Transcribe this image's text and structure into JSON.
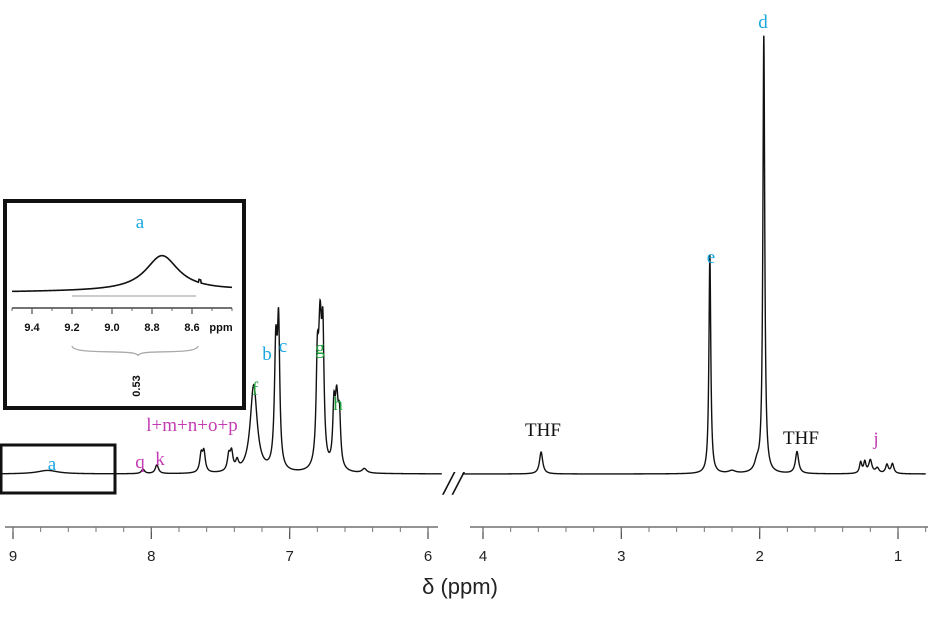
{
  "chart_data": {
    "type": "line",
    "title": "",
    "xlabel": "δ (ppm)",
    "ylabel": "",
    "x_direction": "descending",
    "axis_segments": [
      {
        "xlim": [
          9.1,
          5.9
        ],
        "ticks": [
          "9",
          "8",
          "7",
          "6"
        ]
      },
      {
        "xlim": [
          4.1,
          0.8
        ],
        "ticks": [
          "4",
          "3",
          "2",
          "1"
        ]
      }
    ],
    "axis_break": "//",
    "colors": {
      "cyan": "#1aa7e1",
      "green": "#1e9e3a",
      "magenta": "#c43bb4",
      "black": "#111111"
    },
    "peaks": [
      {
        "label": "a",
        "ppm": 8.75,
        "intensity": 0.008,
        "color": "cyan"
      },
      {
        "label": "q",
        "ppm": 8.06,
        "intensity": 0.01,
        "color": "magenta"
      },
      {
        "label": "k",
        "ppm": 7.96,
        "intensity": 0.02,
        "color": "magenta"
      },
      {
        "label": "l+m+n+o+p",
        "ppm": 7.6,
        "intensity": 0.07,
        "color": "magenta"
      },
      {
        "label": "f",
        "ppm": 7.26,
        "intensity": 0.2,
        "color": "green"
      },
      {
        "label": "b",
        "ppm": 7.1,
        "intensity": 0.27,
        "color": "cyan"
      },
      {
        "label": "c",
        "ppm": 7.08,
        "intensity": 0.3,
        "color": "cyan"
      },
      {
        "label": "g",
        "ppm": 6.78,
        "intensity": 0.3,
        "color": "green"
      },
      {
        "label": "h",
        "ppm": 6.66,
        "intensity": 0.15,
        "color": "green"
      },
      {
        "label": "THF",
        "ppm": 3.58,
        "intensity": 0.05,
        "color": "black"
      },
      {
        "label": "e",
        "ppm": 2.36,
        "intensity": 0.5,
        "color": "cyan"
      },
      {
        "label": "d",
        "ppm": 1.97,
        "intensity": 1.0,
        "color": "cyan"
      },
      {
        "label": "THF",
        "ppm": 1.73,
        "intensity": 0.05,
        "color": "black"
      },
      {
        "label": "j",
        "ppm": 1.2,
        "intensity": 0.03,
        "color": "magenta"
      }
    ],
    "inset": {
      "peak_label": "a",
      "xlim": [
        9.5,
        8.4
      ],
      "ticks": [
        "9.4",
        "9.2",
        "9.0",
        "8.8",
        "8.6",
        "ppm"
      ],
      "integral_value": "0.53",
      "peak_ppm": 8.75
    }
  }
}
